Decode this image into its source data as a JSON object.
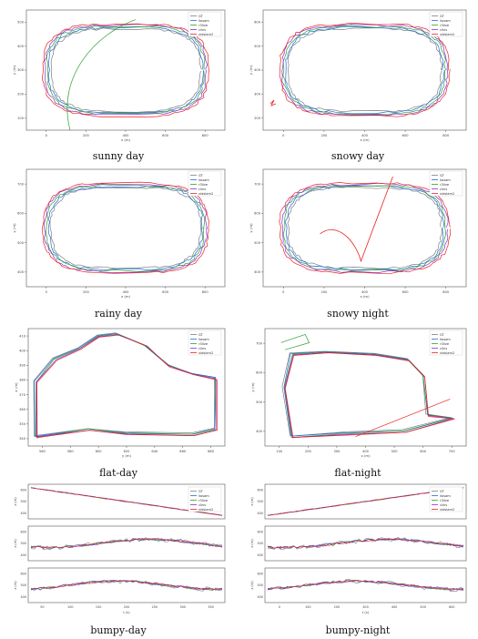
{
  "legend_default": [
    "GT",
    "liosam",
    "r3live",
    "clins",
    "vidslam2"
  ],
  "colors": {
    "GT": "#7f7f7f",
    "a": "#1f6fd0",
    "b": "#2ca02c",
    "c": "#8c2bd6",
    "d": "#e8231f"
  },
  "panels": [
    {
      "id": "sunny",
      "caption": "sunny day",
      "xlabel": "x (m)",
      "ylabel": "y (m)",
      "xticks": [
        "0",
        "200",
        "400",
        "600",
        "800"
      ],
      "yticks": [
        "500",
        "400",
        "300",
        "200",
        "100"
      ]
    },
    {
      "id": "snowy",
      "caption": "snowy day",
      "xlabel": "x (m)",
      "ylabel": "y (m)",
      "xticks": [
        "0",
        "200",
        "400",
        "600",
        "800"
      ],
      "yticks": [
        "600",
        "500",
        "400",
        "300",
        "200"
      ]
    },
    {
      "id": "rainy",
      "caption": "rainy day",
      "xlabel": "x (m)",
      "ylabel": "y (m)",
      "xticks": [
        "0",
        "200",
        "400",
        "600",
        "800"
      ],
      "yticks": [
        "700",
        "600",
        "500",
        "400"
      ]
    },
    {
      "id": "snowynight",
      "caption": "snowy night",
      "xlabel": "x (m)",
      "ylabel": "y (m)",
      "xticks": [
        "0",
        "200",
        "400",
        "600",
        "800"
      ],
      "yticks": [
        "700",
        "600",
        "500",
        "400"
      ]
    },
    {
      "id": "flatday",
      "caption": "flat-day",
      "xlabel": "y (m)",
      "ylabel": "x (m)",
      "xticks": [
        "560",
        "580",
        "600",
        "620",
        "640",
        "660",
        "680"
      ],
      "yticks": [
        "410",
        "400",
        "390",
        "380",
        "370",
        "360",
        "350",
        "340"
      ]
    },
    {
      "id": "flatnight",
      "caption": "flat-night",
      "xlabel": "x (m)",
      "ylabel": "y (m)",
      "xticks": [
        "100",
        "200",
        "300",
        "400",
        "500",
        "600",
        "700"
      ],
      "yticks": [
        "700",
        "600",
        "500",
        "400"
      ]
    },
    {
      "id": "bumpyday",
      "caption": "bumpy-day",
      "xlabel": "t (s)",
      "ylabel": "z (m)",
      "xticks": [
        "50",
        "100",
        "150",
        "200",
        "250",
        "300",
        "350"
      ],
      "yticks": [
        "600",
        "500",
        "400"
      ]
    },
    {
      "id": "bumpynight",
      "caption": "bumpy-night",
      "xlabel": "t (s)",
      "ylabel": "z (m)",
      "xticks": [
        "0",
        "100",
        "200",
        "300",
        "400",
        "500",
        "600"
      ],
      "yticks": [
        "600",
        "500",
        "400"
      ]
    }
  ]
}
